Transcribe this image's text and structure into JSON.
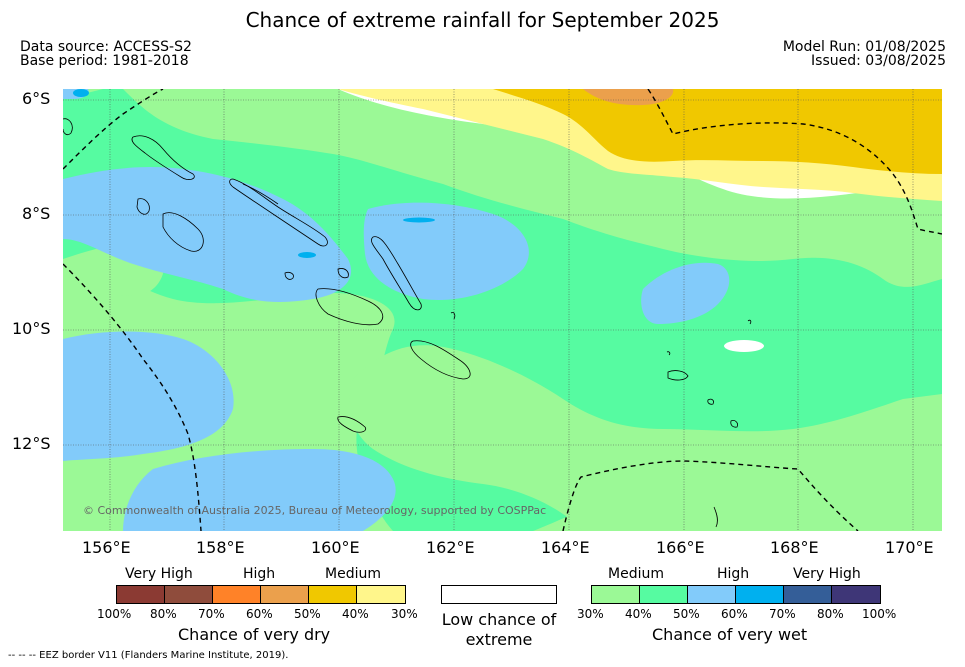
{
  "title": "Chance of extreme rainfall for September 2025",
  "data_source": "Data source: ACCESS-S2",
  "base_period": "Base period: 1981-2018",
  "model_run": "Model Run: 01/08/2025",
  "issued": "Issued: 03/08/2025",
  "lat_labels": [
    "6°S",
    "8°S",
    "10°S",
    "12°S"
  ],
  "lon_labels": [
    "156°E",
    "158°E",
    "160°E",
    "162°E",
    "164°E",
    "166°E",
    "168°E",
    "170°E"
  ],
  "copyright": "© Commonwealth of Australia 2025, Bureau of Meteorology, supported by COSPPac",
  "dry_legend": {
    "headers": [
      "Very High",
      "High",
      "Medium"
    ],
    "ticks": [
      "100%",
      "80%",
      "70%",
      "60%",
      "50%",
      "40%",
      "30%"
    ],
    "title": "Chance of very dry",
    "colors": [
      "#8b3a33",
      "#8f4c3c",
      "#ff8228",
      "#eba04c",
      "#f0c800",
      "#fff68b"
    ]
  },
  "low_legend": {
    "title": "Low chance of extreme"
  },
  "wet_legend": {
    "headers": [
      "Medium",
      "High",
      "Very High"
    ],
    "ticks": [
      "30%",
      "40%",
      "50%",
      "60%",
      "70%",
      "80%",
      "100%"
    ],
    "title": "Chance of very wet",
    "colors": [
      "#9bf996",
      "#56fba1",
      "#82cbfa",
      "#00b0ef",
      "#345e98",
      "#3e3677"
    ]
  },
  "footnote": "--  --  -- EEZ border V11 (Flanders Marine Institute, 2019).",
  "map_colors": {
    "low": "#ffffff",
    "wet_30": "#9bf996",
    "wet_40": "#56fba1",
    "wet_50": "#82cbfa",
    "wet_60": "#00b0ef",
    "dry_30": "#fff68b",
    "dry_40": "#f0c800",
    "dry_50": "#eba04c"
  }
}
